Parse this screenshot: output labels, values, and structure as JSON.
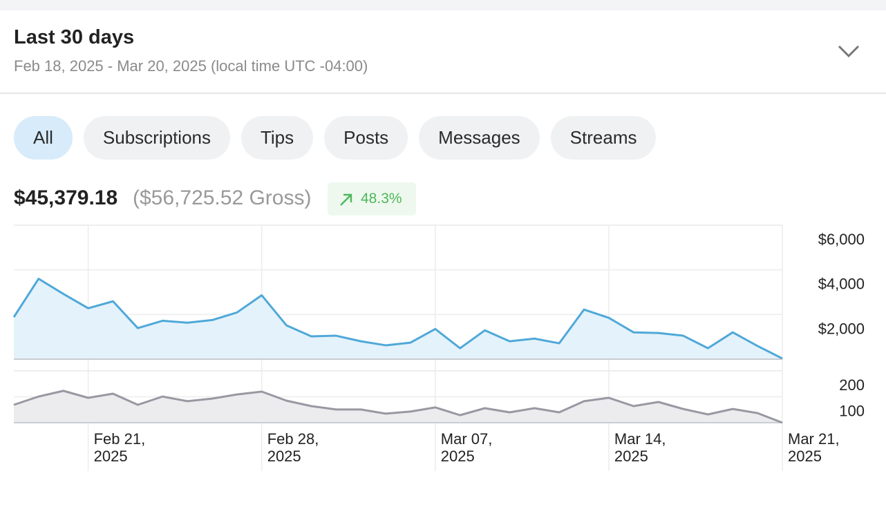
{
  "header": {
    "title": "Last 30 days",
    "subtitle": "Feb 18, 2025 - Mar 20, 2025 (local time UTC -04:00)"
  },
  "tabs": [
    {
      "label": "All",
      "selected": true
    },
    {
      "label": "Subscriptions",
      "selected": false
    },
    {
      "label": "Tips",
      "selected": false
    },
    {
      "label": "Posts",
      "selected": false
    },
    {
      "label": "Messages",
      "selected": false
    },
    {
      "label": "Streams",
      "selected": false
    }
  ],
  "summary": {
    "net": "$45,379.18",
    "gross": "($56,725.52 Gross)",
    "change": "48.3%"
  },
  "chart_data": [
    {
      "type": "area",
      "x": [
        "2025-02-18",
        "2025-02-19",
        "2025-02-20",
        "2025-02-21",
        "2025-02-22",
        "2025-02-23",
        "2025-02-24",
        "2025-02-25",
        "2025-02-26",
        "2025-02-27",
        "2025-02-28",
        "2025-03-01",
        "2025-03-02",
        "2025-03-03",
        "2025-03-04",
        "2025-03-05",
        "2025-03-06",
        "2025-03-07",
        "2025-03-08",
        "2025-03-09",
        "2025-03-10",
        "2025-03-11",
        "2025-03-12",
        "2025-03-13",
        "2025-03-14",
        "2025-03-15",
        "2025-03-16",
        "2025-03-17",
        "2025-03-18",
        "2025-03-19",
        "2025-03-20",
        "2025-03-21"
      ],
      "values": [
        1880,
        3600,
        2920,
        2280,
        2590,
        1390,
        1720,
        1630,
        1750,
        2090,
        2860,
        1510,
        1020,
        1050,
        800,
        620,
        740,
        1350,
        490,
        1290,
        800,
        920,
        710,
        2220,
        1850,
        1200,
        1170,
        1050,
        490,
        1200,
        590,
        30
      ],
      "color": "#4fa8d8",
      "fill": "#e4f2fb",
      "xlim": [
        "2025-02-18",
        "2025-03-21"
      ],
      "ylim": [
        0,
        6000
      ],
      "yticks": [
        {
          "value": 2000,
          "label": "$2,000"
        },
        {
          "value": 4000,
          "label": "$4,000"
        },
        {
          "value": 6000,
          "label": "$6,000"
        }
      ],
      "grid": true
    },
    {
      "type": "area",
      "x": [
        "2025-02-18",
        "2025-02-19",
        "2025-02-20",
        "2025-02-21",
        "2025-02-22",
        "2025-02-23",
        "2025-02-24",
        "2025-02-25",
        "2025-02-26",
        "2025-02-27",
        "2025-02-28",
        "2025-03-01",
        "2025-03-02",
        "2025-03-03",
        "2025-03-04",
        "2025-03-05",
        "2025-03-06",
        "2025-03-07",
        "2025-03-08",
        "2025-03-09",
        "2025-03-10",
        "2025-03-11",
        "2025-03-12",
        "2025-03-13",
        "2025-03-14",
        "2025-03-15",
        "2025-03-16",
        "2025-03-17",
        "2025-03-18",
        "2025-03-19",
        "2025-03-20",
        "2025-03-21"
      ],
      "values": [
        69,
        101,
        123,
        96,
        112,
        69,
        101,
        83,
        93,
        109,
        120,
        85,
        64,
        51,
        51,
        35,
        43,
        59,
        29,
        56,
        40,
        56,
        40,
        83,
        96,
        64,
        80,
        53,
        32,
        53,
        37,
        0
      ],
      "color": "#9898a2",
      "fill": "#ececef",
      "xlim": [
        "2025-02-18",
        "2025-03-21"
      ],
      "ylim": [
        0,
        200
      ],
      "yticks": [
        100,
        200
      ],
      "xticks": [
        {
          "value": "2025-02-21",
          "label": "Feb 21, 2025"
        },
        {
          "value": "2025-02-28",
          "label": "Feb 28, 2025"
        },
        {
          "value": "2025-03-07",
          "label": "Mar 07, 2025"
        },
        {
          "value": "2025-03-14",
          "label": "Mar 14, 2025"
        },
        {
          "value": "2025-03-21",
          "label": "Mar 21, 2025"
        }
      ],
      "grid": true
    }
  ]
}
